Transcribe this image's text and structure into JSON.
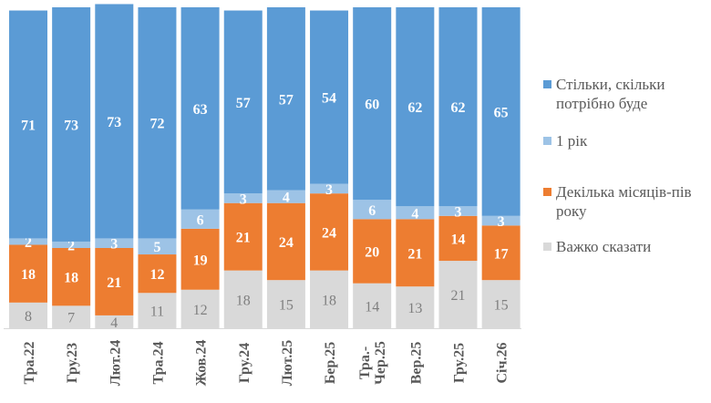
{
  "chart_data": {
    "type": "bar",
    "stacked": true,
    "categories": [
      "Тра.22",
      "Гру.23",
      "Лют.24",
      "Тра.24",
      "Жов.24",
      "Гру.24",
      "Лют.25",
      "Бер.25",
      "Тра.-Чер.25",
      "Вер.25",
      "Гру.25",
      "Січ.26"
    ],
    "series": [
      {
        "name": "Важко сказати",
        "color": "#d9d9d9",
        "label_color": "#7f7f7f",
        "values": [
          8,
          7,
          4,
          11,
          12,
          18,
          15,
          18,
          14,
          13,
          21,
          15
        ]
      },
      {
        "name": "Декілька місяців-пів року",
        "color": "#ed7d31",
        "label_color": "#ffffff",
        "values": [
          18,
          18,
          21,
          12,
          19,
          21,
          24,
          24,
          20,
          21,
          14,
          17
        ]
      },
      {
        "name": "1 рік",
        "color": "#9dc3e6",
        "label_color": "#ffffff",
        "values": [
          2,
          2,
          3,
          5,
          6,
          3,
          4,
          3,
          6,
          4,
          3,
          3
        ]
      },
      {
        "name": "Стільки, скільки потрібно буде",
        "color": "#5b9bd5",
        "label_color": "#ffffff",
        "values": [
          71,
          73,
          73,
          72,
          63,
          57,
          57,
          54,
          60,
          62,
          62,
          65
        ]
      }
    ],
    "legend_order": [
      "Стільки, скільки потрібно буде",
      "1 рік",
      "Декілька місяців-пів року",
      "Важко сказати"
    ],
    "legend_position": "right",
    "grid": false
  }
}
